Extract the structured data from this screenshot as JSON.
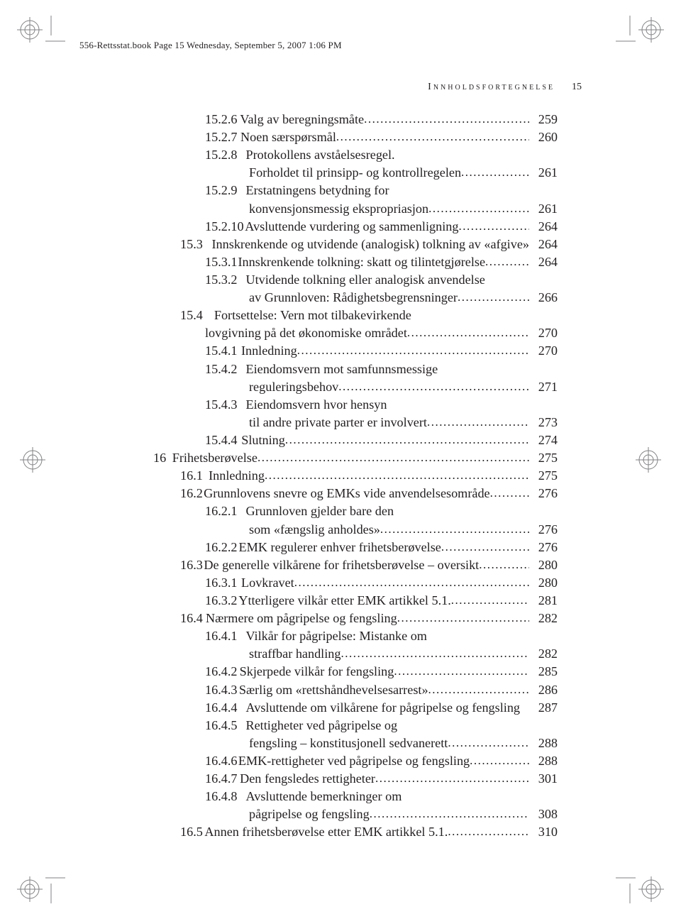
{
  "header": "556-Rettsstat.book  Page 15  Wednesday, September 5, 2007  1:06 PM",
  "running_head": "Innholdsfortegnelse",
  "page_number": "15",
  "entries": [
    {
      "level": 2,
      "num": "15.2.6",
      "label": "Valg av beregningsmåte",
      "page": "259"
    },
    {
      "level": 2,
      "num": "15.2.7",
      "label": "Noen særspørsmål",
      "page": "260"
    },
    {
      "level": 2,
      "num": "15.2.8",
      "label": "Protokollens avståelsesregel.",
      "cont": "Forholdet til prinsipp- og kontrollregelen",
      "page": "261"
    },
    {
      "level": 2,
      "num": "15.2.9",
      "label": "Erstatningens betydning for",
      "cont": "konvensjonsmessig ekspropriasjon",
      "page": "261"
    },
    {
      "level": 2,
      "num": "15.2.10",
      "label": "Avsluttende vurdering og sammenligning",
      "page": "264",
      "tight": true
    },
    {
      "level": 1,
      "num": "15.3",
      "label": "Innskrenkende og utvidende (analogisk) tolkning av «afgive»",
      "page": "264",
      "nodots": true
    },
    {
      "level": 2,
      "num": "15.3.1",
      "label": "Innskrenkende tolkning: skatt og tilintetgjørelse",
      "page": "264"
    },
    {
      "level": 2,
      "num": "15.3.2",
      "label": "Utvidende tolkning eller analogisk anvendelse",
      "cont": "av Grunnloven: Rådighetsbegrensninger",
      "page": "266"
    },
    {
      "level": 1,
      "num": "15.4",
      "label": "Fortsettelse: Vern mot tilbakevirkende",
      "cont": "lovgivning på det økonomiske området",
      "page": "270"
    },
    {
      "level": 2,
      "num": "15.4.1",
      "label": "Innledning",
      "page": "270"
    },
    {
      "level": 2,
      "num": "15.4.2",
      "label": "Eiendomsvern mot samfunnsmessige",
      "cont": "reguleringsbehov",
      "page": "271"
    },
    {
      "level": 2,
      "num": "15.4.3",
      "label": "Eiendomsvern hvor hensyn",
      "cont": "til andre private parter er involvert",
      "page": "273"
    },
    {
      "level": 2,
      "num": "15.4.4",
      "label": "Slutning",
      "page": "274"
    },
    {
      "level": 0,
      "num": "16",
      "label": "Frihetsberøvelse",
      "page": "275",
      "bold": true
    },
    {
      "level": 1,
      "num": "16.1",
      "label": "Innledning",
      "page": "275"
    },
    {
      "level": 1,
      "num": "16.2",
      "label": "Grunnlovens snevre og EMKs vide anvendelsesområde",
      "page": "276"
    },
    {
      "level": 2,
      "num": "16.2.1",
      "label": "Grunnloven gjelder bare den",
      "cont": "som «fængslig anholdes»",
      "page": "276"
    },
    {
      "level": 2,
      "num": "16.2.2",
      "label": "EMK regulerer enhver frihetsberøvelse",
      "page": "276"
    },
    {
      "level": 1,
      "num": "16.3",
      "label": "De generelle vilkårene for frihetsberøvelse – oversikt",
      "page": "280"
    },
    {
      "level": 2,
      "num": "16.3.1",
      "label": "Lovkravet",
      "page": "280"
    },
    {
      "level": 2,
      "num": "16.3.2",
      "label": "Ytterligere vilkår etter EMK artikkel 5.1.",
      "page": "281"
    },
    {
      "level": 1,
      "num": "16.4",
      "label": "Nærmere om pågripelse og fengsling",
      "page": "282"
    },
    {
      "level": 2,
      "num": "16.4.1",
      "label": "Vilkår for pågripelse: Mistanke om",
      "cont": "straffbar handling",
      "page": "282"
    },
    {
      "level": 2,
      "num": "16.4.2",
      "label": "Skjerpede vilkår for fengsling",
      "page": "285"
    },
    {
      "level": 2,
      "num": "16.4.3",
      "label": "Særlig om «rettshåndhevelsesarrest»",
      "page": "286"
    },
    {
      "level": 2,
      "num": "16.4.4",
      "label": "Avsluttende om vilkårene for pågripelse og fengsling",
      "page": "287",
      "nodots": true
    },
    {
      "level": 2,
      "num": "16.4.5",
      "label": "Rettigheter ved pågripelse og",
      "cont": "fengsling – konstitusjonell sedvanerett",
      "page": "288"
    },
    {
      "level": 2,
      "num": "16.4.6",
      "label": "EMK-rettigheter ved pågripelse og fengsling",
      "page": "288"
    },
    {
      "level": 2,
      "num": "16.4.7",
      "label": "Den fengsledes rettigheter",
      "page": "301"
    },
    {
      "level": 2,
      "num": "16.4.8",
      "label": "Avsluttende bemerkninger om",
      "cont": "pågripelse og fengsling",
      "page": "308"
    },
    {
      "level": 1,
      "num": "16.5",
      "label": "Annen frihetsberøvelse etter EMK artikkel 5.1.",
      "page": "310"
    }
  ],
  "crop_color": "#808184",
  "target_color": "#808184"
}
